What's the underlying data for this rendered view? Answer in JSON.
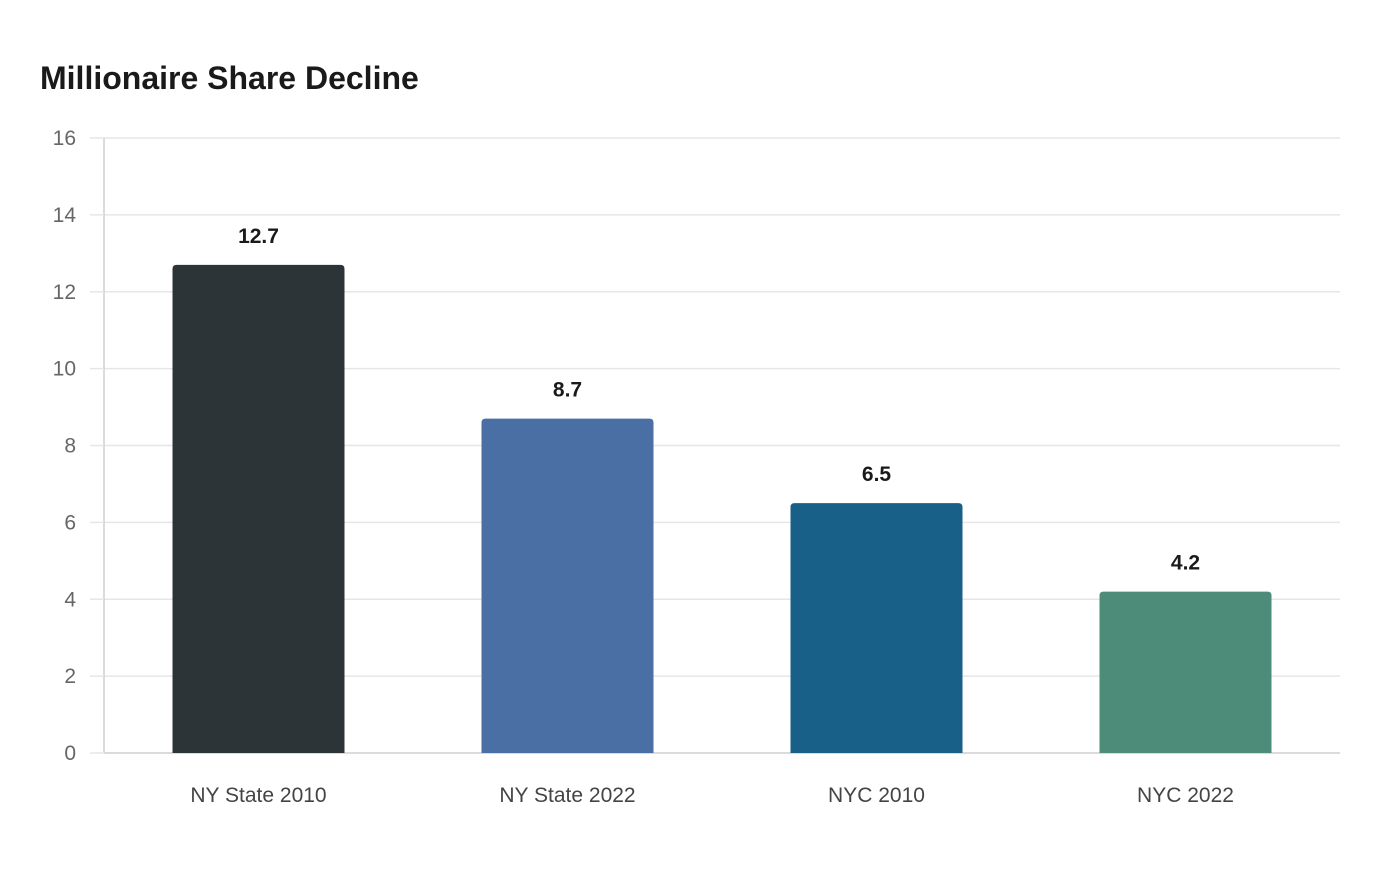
{
  "chart_data": {
    "type": "bar",
    "title": "Millionaire Share Decline",
    "xlabel": "",
    "ylabel": "",
    "categories": [
      "NY State 2010",
      "NY State 2022",
      "NYC 2010",
      "NYC 2022"
    ],
    "values": [
      12.7,
      8.7,
      6.5,
      4.2
    ],
    "data_labels": [
      "12.7",
      "8.7",
      "6.5",
      "4.2"
    ],
    "colors": [
      "#2c3437",
      "#4a6fa5",
      "#186088",
      "#4e8c7a"
    ],
    "ylim": [
      0,
      16
    ],
    "y_ticks": [
      0,
      2,
      4,
      6,
      8,
      10,
      12,
      14,
      16
    ],
    "grid": true,
    "legend": "none"
  }
}
